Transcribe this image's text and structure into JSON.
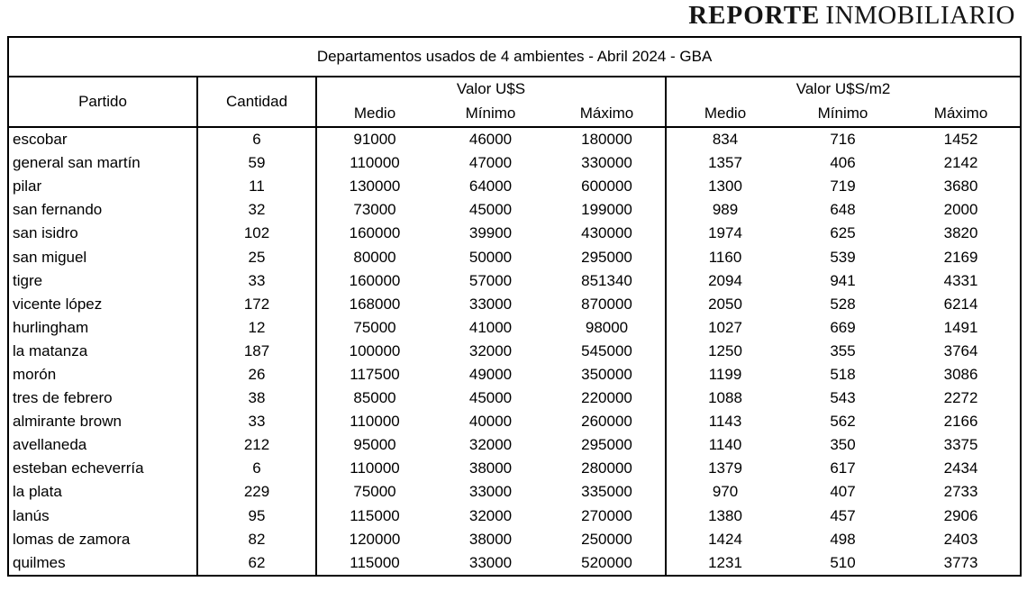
{
  "logo": {
    "bold": "REPORTE",
    "regular": "INMOBILIARIO"
  },
  "table": {
    "title": "Departamentos usados de 4 ambientes - Abril 2024 - GBA",
    "columns": {
      "partido": "Partido",
      "cantidad": "Cantidad",
      "valor_usd": "Valor U$S",
      "valor_usd_m2": "Valor U$S/m2",
      "sub": [
        "Medio",
        "Mínimo",
        "Máximo"
      ]
    },
    "rows": [
      {
        "partido": "escobar",
        "cantidad": "6",
        "usd": [
          "91000",
          "46000",
          "180000"
        ],
        "usd_m2": [
          "834",
          "716",
          "1452"
        ]
      },
      {
        "partido": "general san martín",
        "cantidad": "59",
        "usd": [
          "110000",
          "47000",
          "330000"
        ],
        "usd_m2": [
          "1357",
          "406",
          "2142"
        ]
      },
      {
        "partido": "pilar",
        "cantidad": "11",
        "usd": [
          "130000",
          "64000",
          "600000"
        ],
        "usd_m2": [
          "1300",
          "719",
          "3680"
        ]
      },
      {
        "partido": "san fernando",
        "cantidad": "32",
        "usd": [
          "73000",
          "45000",
          "199000"
        ],
        "usd_m2": [
          "989",
          "648",
          "2000"
        ]
      },
      {
        "partido": "san isidro",
        "cantidad": "102",
        "usd": [
          "160000",
          "39900",
          "430000"
        ],
        "usd_m2": [
          "1974",
          "625",
          "3820"
        ]
      },
      {
        "partido": "san miguel",
        "cantidad": "25",
        "usd": [
          "80000",
          "50000",
          "295000"
        ],
        "usd_m2": [
          "1160",
          "539",
          "2169"
        ]
      },
      {
        "partido": "tigre",
        "cantidad": "33",
        "usd": [
          "160000",
          "57000",
          "851340"
        ],
        "usd_m2": [
          "2094",
          "941",
          "4331"
        ]
      },
      {
        "partido": "vicente lópez",
        "cantidad": "172",
        "usd": [
          "168000",
          "33000",
          "870000"
        ],
        "usd_m2": [
          "2050",
          "528",
          "6214"
        ]
      },
      {
        "partido": "hurlingham",
        "cantidad": "12",
        "usd": [
          "75000",
          "41000",
          "98000"
        ],
        "usd_m2": [
          "1027",
          "669",
          "1491"
        ]
      },
      {
        "partido": "la matanza",
        "cantidad": "187",
        "usd": [
          "100000",
          "32000",
          "545000"
        ],
        "usd_m2": [
          "1250",
          "355",
          "3764"
        ]
      },
      {
        "partido": "morón",
        "cantidad": "26",
        "usd": [
          "117500",
          "49000",
          "350000"
        ],
        "usd_m2": [
          "1199",
          "518",
          "3086"
        ]
      },
      {
        "partido": "tres de febrero",
        "cantidad": "38",
        "usd": [
          "85000",
          "45000",
          "220000"
        ],
        "usd_m2": [
          "1088",
          "543",
          "2272"
        ]
      },
      {
        "partido": "almirante brown",
        "cantidad": "33",
        "usd": [
          "110000",
          "40000",
          "260000"
        ],
        "usd_m2": [
          "1143",
          "562",
          "2166"
        ]
      },
      {
        "partido": "avellaneda",
        "cantidad": "212",
        "usd": [
          "95000",
          "32000",
          "295000"
        ],
        "usd_m2": [
          "1140",
          "350",
          "3375"
        ]
      },
      {
        "partido": "esteban echeverría",
        "cantidad": "6",
        "usd": [
          "110000",
          "38000",
          "280000"
        ],
        "usd_m2": [
          "1379",
          "617",
          "2434"
        ]
      },
      {
        "partido": "la plata",
        "cantidad": "229",
        "usd": [
          "75000",
          "33000",
          "335000"
        ],
        "usd_m2": [
          "970",
          "407",
          "2733"
        ]
      },
      {
        "partido": "lanús",
        "cantidad": "95",
        "usd": [
          "115000",
          "32000",
          "270000"
        ],
        "usd_m2": [
          "1380",
          "457",
          "2906"
        ]
      },
      {
        "partido": "lomas de zamora",
        "cantidad": "82",
        "usd": [
          "120000",
          "38000",
          "250000"
        ],
        "usd_m2": [
          "1424",
          "498",
          "2403"
        ]
      },
      {
        "partido": "quilmes",
        "cantidad": "62",
        "usd": [
          "115000",
          "33000",
          "520000"
        ],
        "usd_m2": [
          "1231",
          "510",
          "3773"
        ]
      }
    ]
  }
}
